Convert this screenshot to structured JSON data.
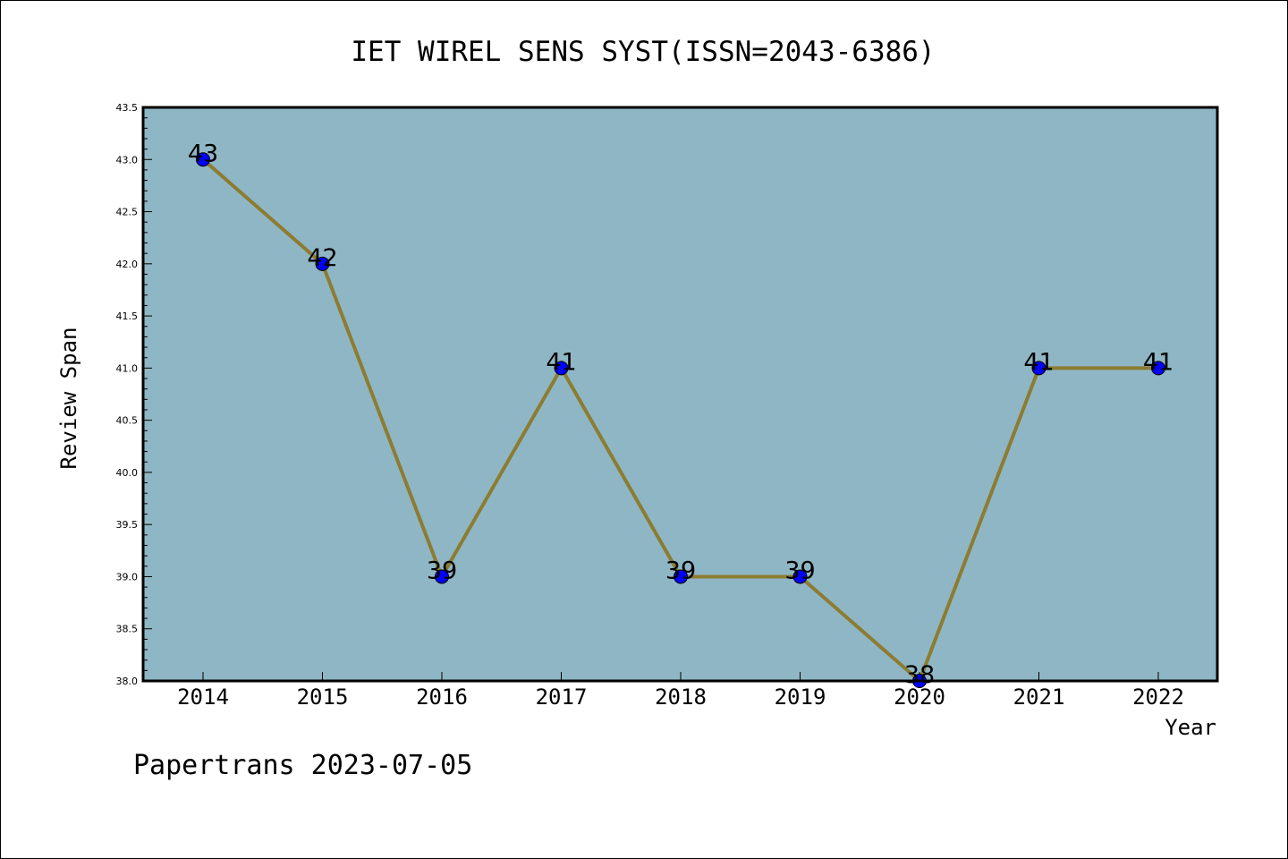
{
  "chart_data": {
    "type": "line",
    "title": "IET WIREL SENS SYST(ISSN=2043-6386)",
    "xlabel": "Year",
    "ylabel": "Review Span",
    "categories": [
      "2014",
      "2015",
      "2016",
      "2017",
      "2018",
      "2019",
      "2020",
      "2021",
      "2022"
    ],
    "values": [
      43,
      42,
      39,
      41,
      39,
      39,
      38,
      41,
      41
    ],
    "data_labels": [
      "43",
      "42",
      "39",
      "41",
      "39",
      "39",
      "38",
      "41",
      "41"
    ],
    "ylim": [
      38.0,
      43.5
    ],
    "yticks": [
      "38.0",
      "38.5",
      "39.0",
      "39.5",
      "40.0",
      "40.5",
      "41.0",
      "41.5",
      "42.0",
      "42.5",
      "43.0",
      "43.5"
    ],
    "grid": false,
    "colors": {
      "plot_background": "#8fb6c4",
      "line": "#8c7c32",
      "marker": "#0000ff",
      "marker_edge": "#000000"
    }
  },
  "footer": {
    "text": "Papertrans 2023-07-05"
  }
}
